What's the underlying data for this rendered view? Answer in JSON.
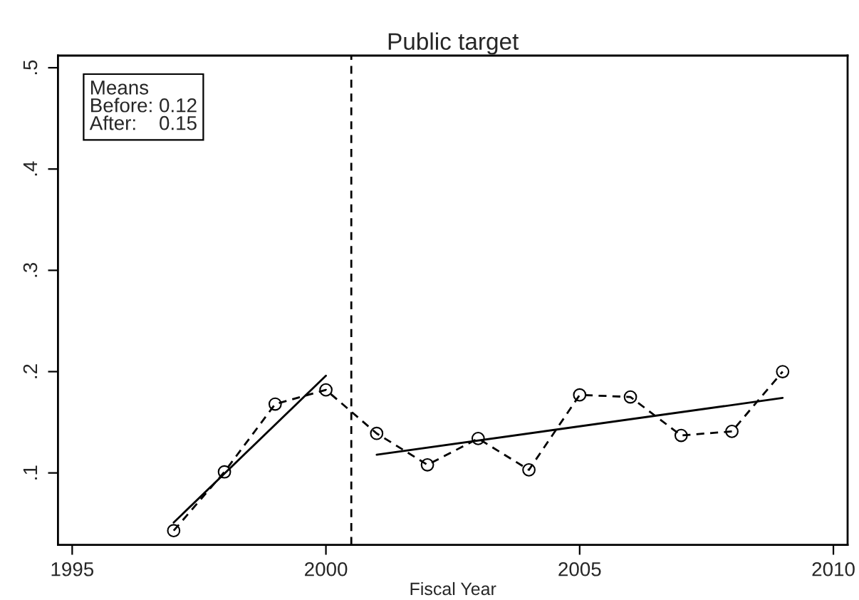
{
  "chart_data": {
    "type": "line",
    "title": "Public target",
    "xlabel": "Fiscal Year",
    "xlim": [
      1994.72,
      2010.28
    ],
    "xticks": [
      1995,
      2000,
      2005,
      2010
    ],
    "ylim": [
      0.029,
      0.512
    ],
    "yticks": [
      {
        "value": 0.1,
        "label": ".1"
      },
      {
        "value": 0.2,
        "label": ".2"
      },
      {
        "value": 0.3,
        "label": ".3"
      },
      {
        "value": 0.4,
        "label": ".4"
      },
      {
        "value": 0.5,
        "label": ".5"
      }
    ],
    "grid": false,
    "legend": false,
    "series": [
      {
        "color": "#000000",
        "line_style": "dashed",
        "marker": "circle",
        "x": [
          1997,
          1998,
          1999,
          2000,
          2001,
          2002,
          2003,
          2004,
          2005,
          2006,
          2007,
          2008,
          2009
        ],
        "values": [
          0.043,
          0.101,
          0.168,
          0.182,
          0.139,
          0.108,
          0.134,
          0.103,
          0.177,
          0.175,
          0.137,
          0.141,
          0.2
        ]
      },
      {
        "color": "#000000",
        "line_style": "solid",
        "marker": "none",
        "x": [
          1997,
          2000
        ],
        "values": [
          0.051,
          0.196
        ]
      },
      {
        "color": "#000000",
        "line_style": "solid",
        "marker": "none",
        "x": [
          2001,
          2009
        ],
        "values": [
          0.118,
          0.174
        ]
      }
    ],
    "ref_lines": [
      {
        "axis": "x",
        "value": 2000.5,
        "color": "#000000",
        "line_style": "dashed"
      }
    ],
    "annotations": [
      "Means\nBefore: 0.12\nAfter:    0.15"
    ]
  }
}
